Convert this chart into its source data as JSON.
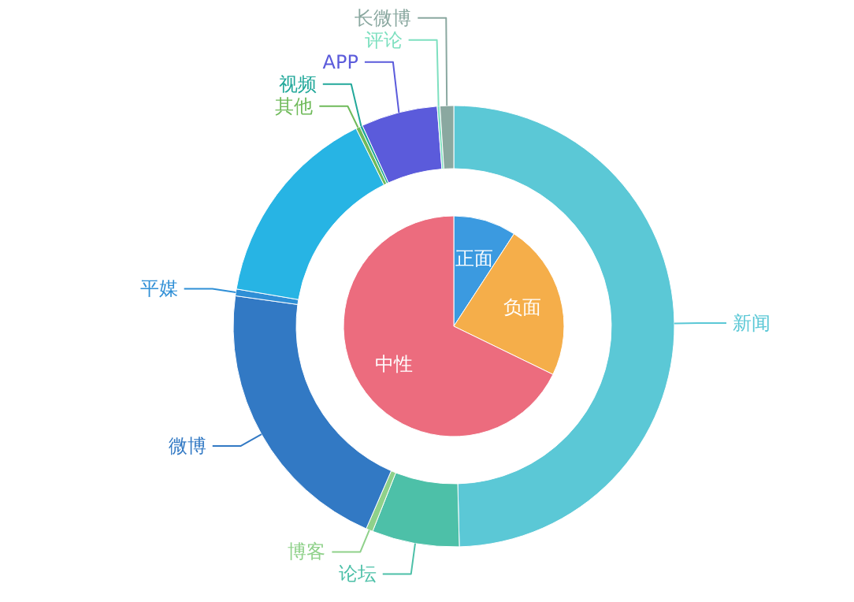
{
  "chart_data": [
    {
      "type": "pie",
      "categories": [
        "正面",
        "负面",
        "中性"
      ],
      "values": [
        9.2,
        23,
        67.8
      ],
      "colors": [
        "#3b9ae0",
        "#f5ae4a",
        "#ec6c7e"
      ]
    },
    {
      "type": "donut",
      "categories": [
        "新闻",
        "论坛",
        "博客",
        "微博",
        "平媒",
        null,
        "其他",
        "视频",
        "APP",
        "评论",
        "长微博"
      ],
      "values": [
        49.6,
        6.4,
        0.5,
        20.7,
        0.5,
        15,
        0.3,
        0.2,
        5.6,
        0.2,
        1
      ],
      "colors": [
        "#5bc8d6",
        "#4dc0a8",
        "#8fd18a",
        "#3279c4",
        "#2f8fd6",
        "#27b4e4",
        "#6fba5a",
        "#22a89a",
        "#5b5bdb",
        "#7ee0c0",
        "#8aa8a0"
      ]
    }
  ]
}
